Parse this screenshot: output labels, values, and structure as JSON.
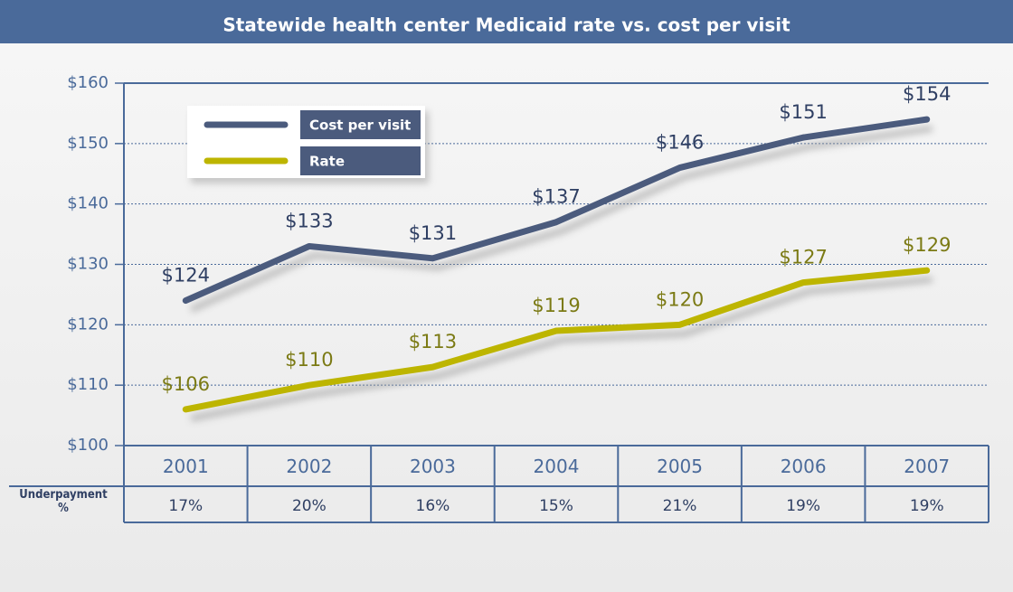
{
  "chart_data": {
    "type": "line",
    "title": "Statewide health center Medicaid rate vs. cost per visit",
    "categories": [
      "2001",
      "2002",
      "2003",
      "2004",
      "2005",
      "2006",
      "2007"
    ],
    "series": [
      {
        "name": "Cost per visit",
        "color": "#4b5b7d",
        "label_color": "#2f3f63",
        "values": [
          124,
          133,
          131,
          137,
          146,
          151,
          154
        ],
        "value_labels": [
          "$124",
          "$133",
          "$131",
          "$137",
          "$146",
          "$151",
          "$154"
        ]
      },
      {
        "name": "Rate",
        "color": "#bdb500",
        "label_color": "#7b7a14",
        "values": [
          106,
          110,
          113,
          119,
          120,
          127,
          129
        ],
        "value_labels": [
          "$106",
          "$110",
          "$113",
          "$119",
          "$120",
          "$127",
          "$129"
        ]
      }
    ],
    "ylim": [
      100,
      160
    ],
    "yticks": [
      {
        "value": 100,
        "label": "$100"
      },
      {
        "value": 110,
        "label": "$110"
      },
      {
        "value": 120,
        "label": "$120"
      },
      {
        "value": 130,
        "label": "$130"
      },
      {
        "value": 140,
        "label": "$140"
      },
      {
        "value": 150,
        "label": "$150"
      },
      {
        "value": 160,
        "label": "$160"
      }
    ],
    "grid": true,
    "legend": "upper left",
    "underpayment": {
      "label": "Underpayment %",
      "values": [
        17,
        20,
        16,
        15,
        21,
        19,
        19
      ],
      "value_labels": [
        "17%",
        "20%",
        "16%",
        "15%",
        "21%",
        "19%",
        "19%"
      ]
    }
  }
}
